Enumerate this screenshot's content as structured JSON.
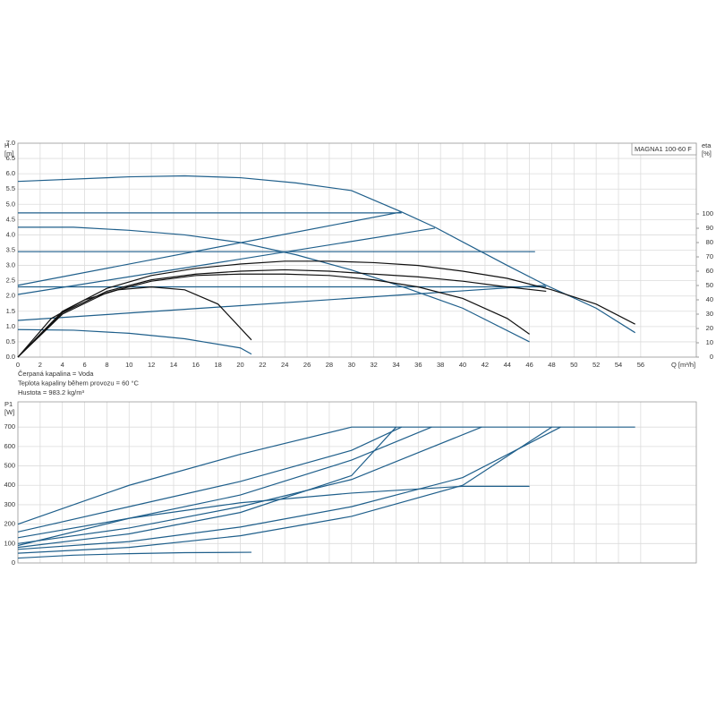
{
  "chart_data": [
    {
      "type": "line",
      "title": "MAGNA1 100-60 F",
      "ylabel": [
        "H",
        "[m]"
      ],
      "y2label": [
        "eta",
        "[%]"
      ],
      "xlabel": "Q [m³/h]",
      "annotations": [
        "Čerpaná kapalina = Voda",
        "Teplota kapaliny během provozu = 60 °C",
        "Hustota = 983.2 kg/m³"
      ],
      "xlim": [
        0,
        61
      ],
      "xticks": [
        0,
        2,
        4,
        6,
        8,
        10,
        12,
        14,
        16,
        18,
        20,
        22,
        24,
        26,
        28,
        30,
        32,
        34,
        36,
        38,
        40,
        42,
        44,
        46,
        48,
        50,
        52,
        54,
        56
      ],
      "ylim": [
        0,
        7
      ],
      "yticks": [
        {
          "value": 0,
          "label": "0.0"
        },
        {
          "value": 0.5,
          "label": "0.5"
        },
        {
          "value": 1,
          "label": "1.0"
        },
        {
          "value": 1.5,
          "label": "1.5"
        },
        {
          "value": 2,
          "label": "2.0"
        },
        {
          "value": 2.5,
          "label": "2.5"
        },
        {
          "value": 3,
          "label": "3.0"
        },
        {
          "value": 3.5,
          "label": "3.5"
        },
        {
          "value": 4,
          "label": "4.0"
        },
        {
          "value": 4.5,
          "label": "4.5"
        },
        {
          "value": 5,
          "label": "5.0"
        },
        {
          "value": 5.5,
          "label": "5.5"
        },
        {
          "value": 6,
          "label": "6.0"
        },
        {
          "value": 6.5,
          "label": "6.5"
        },
        {
          "value": 7,
          "label": "7.0"
        }
      ],
      "y2lim": [
        0,
        149.4
      ],
      "y2ticks": [
        0,
        10,
        20,
        30,
        40,
        50,
        60,
        70,
        80,
        90,
        100
      ],
      "grid": true,
      "series": [
        {
          "color": "#1f5f8b",
          "x": [
            0,
            10,
            15,
            20,
            25,
            30,
            34.5,
            37.5,
            44,
            47.5,
            52,
            55.5
          ],
          "values": [
            5.75,
            5.9,
            5.93,
            5.87,
            5.7,
            5.45,
            4.75,
            4.25,
            3.0,
            2.35,
            1.6,
            0.8
          ]
        },
        {
          "color": "#1f5f8b",
          "x": [
            0,
            5,
            10,
            15,
            20,
            25,
            30,
            35,
            40,
            46
          ],
          "values": [
            4.25,
            4.25,
            4.15,
            4.0,
            3.75,
            3.35,
            2.85,
            2.25,
            1.6,
            0.5
          ]
        },
        {
          "color": "#1f5f8b",
          "x": [
            0,
            5,
            10,
            15,
            20,
            21
          ],
          "values": [
            0.9,
            0.88,
            0.78,
            0.6,
            0.3,
            0.1
          ]
        },
        {
          "color": "#1f5f8b",
          "x": [
            0,
            34.5
          ],
          "values": [
            4.72,
            4.72
          ]
        },
        {
          "color": "#1f5f8b",
          "x": [
            0,
            46.5
          ],
          "values": [
            3.45,
            3.45
          ]
        },
        {
          "color": "#1f5f8b",
          "x": [
            0,
            47.5
          ],
          "values": [
            2.3,
            2.3
          ]
        },
        {
          "color": "#1f5f8b",
          "x": [
            0,
            34.5
          ],
          "values": [
            2.35,
            4.75
          ]
        },
        {
          "color": "#1f5f8b",
          "x": [
            0,
            37.5
          ],
          "values": [
            2.05,
            4.22
          ]
        },
        {
          "color": "#1f5f8b",
          "x": [
            0,
            47.5
          ],
          "values": [
            1.2,
            2.35
          ]
        },
        {
          "color": "#111111",
          "axis": "y2",
          "x": [
            0,
            4,
            8,
            12,
            16,
            20,
            24,
            28,
            32,
            36,
            40,
            44,
            48,
            52,
            55.5
          ],
          "values": [
            0,
            32,
            48,
            57,
            62,
            65,
            67,
            67,
            66,
            64,
            60,
            55,
            47,
            37,
            23
          ]
        },
        {
          "color": "#111111",
          "axis": "y2",
          "x": [
            0,
            3,
            6,
            9,
            12,
            15,
            18,
            21
          ],
          "values": [
            0,
            27,
            40,
            47,
            49,
            47,
            37,
            12
          ]
        },
        {
          "color": "#111111",
          "axis": "y2",
          "x": [
            0,
            4,
            8,
            12,
            16,
            20,
            24,
            28,
            32,
            36,
            40,
            44,
            46
          ],
          "values": [
            0,
            30,
            45,
            53,
            57,
            58,
            58,
            57,
            54,
            49,
            41,
            27,
            16
          ]
        },
        {
          "color": "#111111",
          "axis": "y2",
          "x": [
            0,
            4,
            8,
            12,
            16,
            20,
            24,
            28,
            32,
            36,
            40,
            44,
            47.5
          ],
          "values": [
            0,
            31,
            46,
            54,
            58,
            60,
            61,
            60,
            58,
            56,
            53,
            49,
            46
          ]
        }
      ]
    },
    {
      "type": "line",
      "ylabel": [
        "P1",
        "[W]"
      ],
      "ylim": [
        0,
        830
      ],
      "yticks": [
        0,
        100,
        200,
        300,
        400,
        500,
        600,
        700
      ],
      "grid": true,
      "series": [
        {
          "color": "#1f5f8b",
          "x": [
            0,
            10,
            20,
            30,
            55.5
          ],
          "values": [
            200,
            400,
            560,
            700,
            700
          ]
        },
        {
          "color": "#1f5f8b",
          "x": [
            0,
            10,
            20,
            30,
            34.5
          ],
          "values": [
            160,
            290,
            420,
            580,
            700
          ]
        },
        {
          "color": "#1f5f8b",
          "x": [
            0,
            10,
            20,
            30,
            37.2
          ],
          "values": [
            130,
            230,
            350,
            530,
            700
          ]
        },
        {
          "color": "#1f5f8b",
          "x": [
            0,
            10,
            20,
            30,
            41.7
          ],
          "values": [
            100,
            180,
            290,
            430,
            700
          ]
        },
        {
          "color": "#1f5f8b",
          "x": [
            0,
            10,
            20,
            30,
            34
          ],
          "values": [
            80,
            150,
            260,
            450,
            700
          ]
        },
        {
          "color": "#1f5f8b",
          "x": [
            0,
            10,
            20,
            30,
            40,
            48.8
          ],
          "values": [
            70,
            110,
            185,
            290,
            440,
            700
          ]
        },
        {
          "color": "#1f5f8b",
          "x": [
            0,
            10,
            20,
            30,
            40,
            48
          ],
          "values": [
            50,
            80,
            140,
            240,
            400,
            700
          ]
        },
        {
          "color": "#1f5f8b",
          "x": [
            0,
            10,
            20,
            30,
            40,
            46
          ],
          "values": [
            90,
            230,
            310,
            360,
            395,
            395
          ]
        },
        {
          "color": "#1f5f8b",
          "x": [
            0,
            5,
            10,
            15,
            21
          ],
          "values": [
            25,
            40,
            48,
            53,
            55
          ]
        }
      ]
    }
  ]
}
